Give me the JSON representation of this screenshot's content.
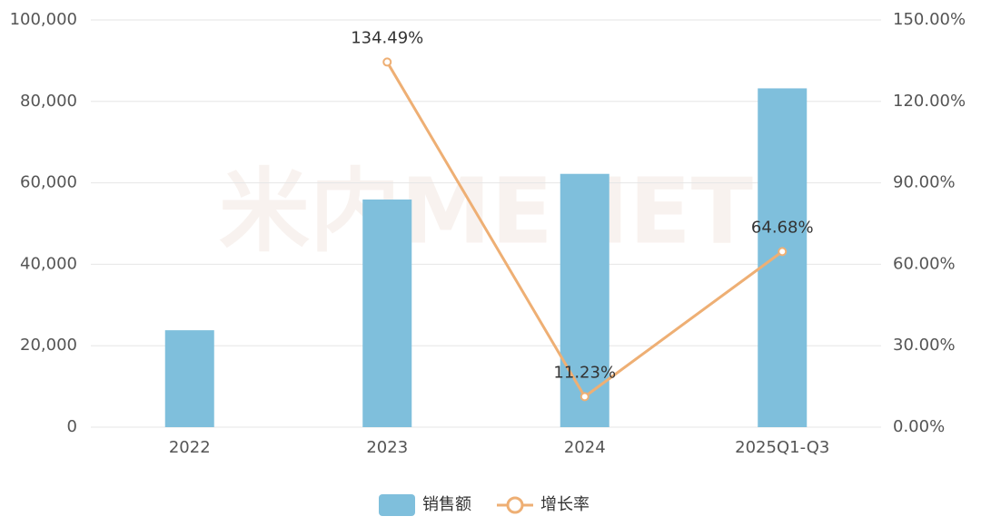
{
  "chart_data": {
    "type": "bar-line",
    "watermark": "米内MENET",
    "categories": [
      "2022",
      "2023",
      "2024",
      "2025Q1-Q3"
    ],
    "series": [
      {
        "name": "销售额",
        "type": "bar",
        "color": "#7fbfdc",
        "values": [
          23800,
          55900,
          62200,
          83200
        ]
      },
      {
        "name": "增长率",
        "type": "line",
        "axis": "y2",
        "color": "#eeaf74",
        "values": [
          null,
          134.49,
          11.23,
          64.68
        ],
        "value_labels": [
          null,
          "134.49%",
          "11.23%",
          "64.68%"
        ]
      }
    ],
    "ylim": [
      0,
      100000
    ],
    "yticks": [
      0,
      {
        "value": 20000,
        "label": "20,000"
      },
      {
        "value": 40000,
        "label": "40,000"
      },
      {
        "value": 60000,
        "label": "60,000"
      },
      {
        "value": 80000,
        "label": "80,000"
      },
      {
        "value": 100000,
        "label": "100,000"
      }
    ],
    "y2lim": [
      0,
      150
    ],
    "y2ticks": [
      {
        "value": 0,
        "label": "0.00%"
      },
      {
        "value": 30,
        "label": "30.00%"
      },
      {
        "value": 60,
        "label": "60.00%"
      },
      {
        "value": 90,
        "label": "90.00%"
      },
      {
        "value": 120,
        "label": "120.00%"
      },
      {
        "value": 150,
        "label": "150.00%"
      }
    ],
    "grid": true,
    "legend": "bottom"
  }
}
